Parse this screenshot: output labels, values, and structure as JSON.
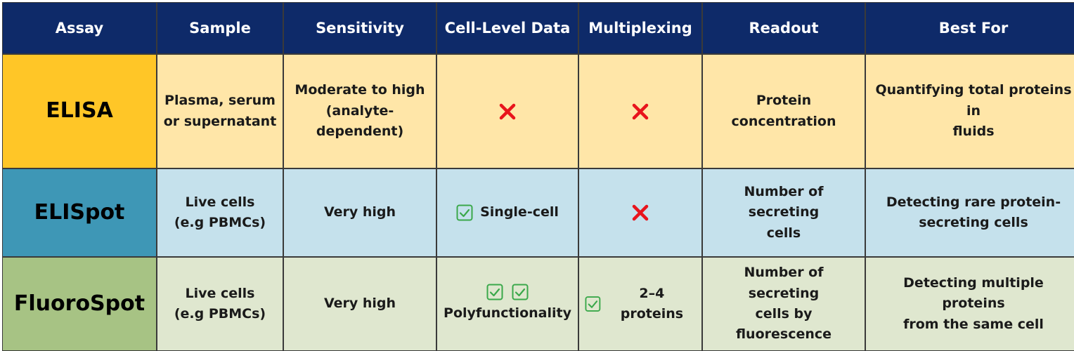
{
  "headers": [
    "Assay",
    "Sample",
    "Sensitivity",
    "Cell-Level Data",
    "Multiplexing",
    "Readout",
    "Best For"
  ],
  "colors": {
    "header_bg": "#0e2a69",
    "elisa_label": "#ffc627",
    "elisa_row": "#ffe6a8",
    "elispot_label": "#3e97b6",
    "elispot_row": "#c5e1ec",
    "fluorospot_label": "#a7c384",
    "fluorospot_row": "#dfe7cf",
    "cross": "#e8141c",
    "check": "#3aa84a"
  },
  "rows": [
    {
      "assay": "ELISA",
      "sample": [
        "Plasma, serum",
        "or supernatant"
      ],
      "sensitivity": [
        "Moderate to high",
        "(analyte-",
        "dependent)"
      ],
      "cell_level": {
        "icon": "cross-icon",
        "text": ""
      },
      "multiplexing": {
        "icon": "cross-icon",
        "text": ""
      },
      "readout": [
        "Protein",
        "concentration"
      ],
      "best_for": [
        "Quantifying total proteins in",
        "fluids"
      ]
    },
    {
      "assay": "ELISpot",
      "sample": [
        "Live cells",
        "(e.g PBMCs)"
      ],
      "sensitivity": [
        "Very high"
      ],
      "cell_level": {
        "icon": "checkbox-icon",
        "text": "Single-cell"
      },
      "multiplexing": {
        "icon": "cross-icon",
        "text": ""
      },
      "readout": [
        "Number of secreting",
        "cells"
      ],
      "best_for": [
        "Detecting rare protein-",
        "secreting cells"
      ]
    },
    {
      "assay": "FluoroSpot",
      "sample": [
        "Live cells",
        "(e.g PBMCs)"
      ],
      "sensitivity": [
        "Very high"
      ],
      "cell_level": {
        "icon": "double-checkbox-icon",
        "text": "Polyfunctionality"
      },
      "multiplexing": {
        "icon": "checkbox-icon",
        "text": "2–4 proteins"
      },
      "readout": [
        "Number of secreting",
        "cells by",
        "fluorescence"
      ],
      "best_for": [
        "Detecting multiple proteins",
        "from the same cell"
      ]
    }
  ]
}
